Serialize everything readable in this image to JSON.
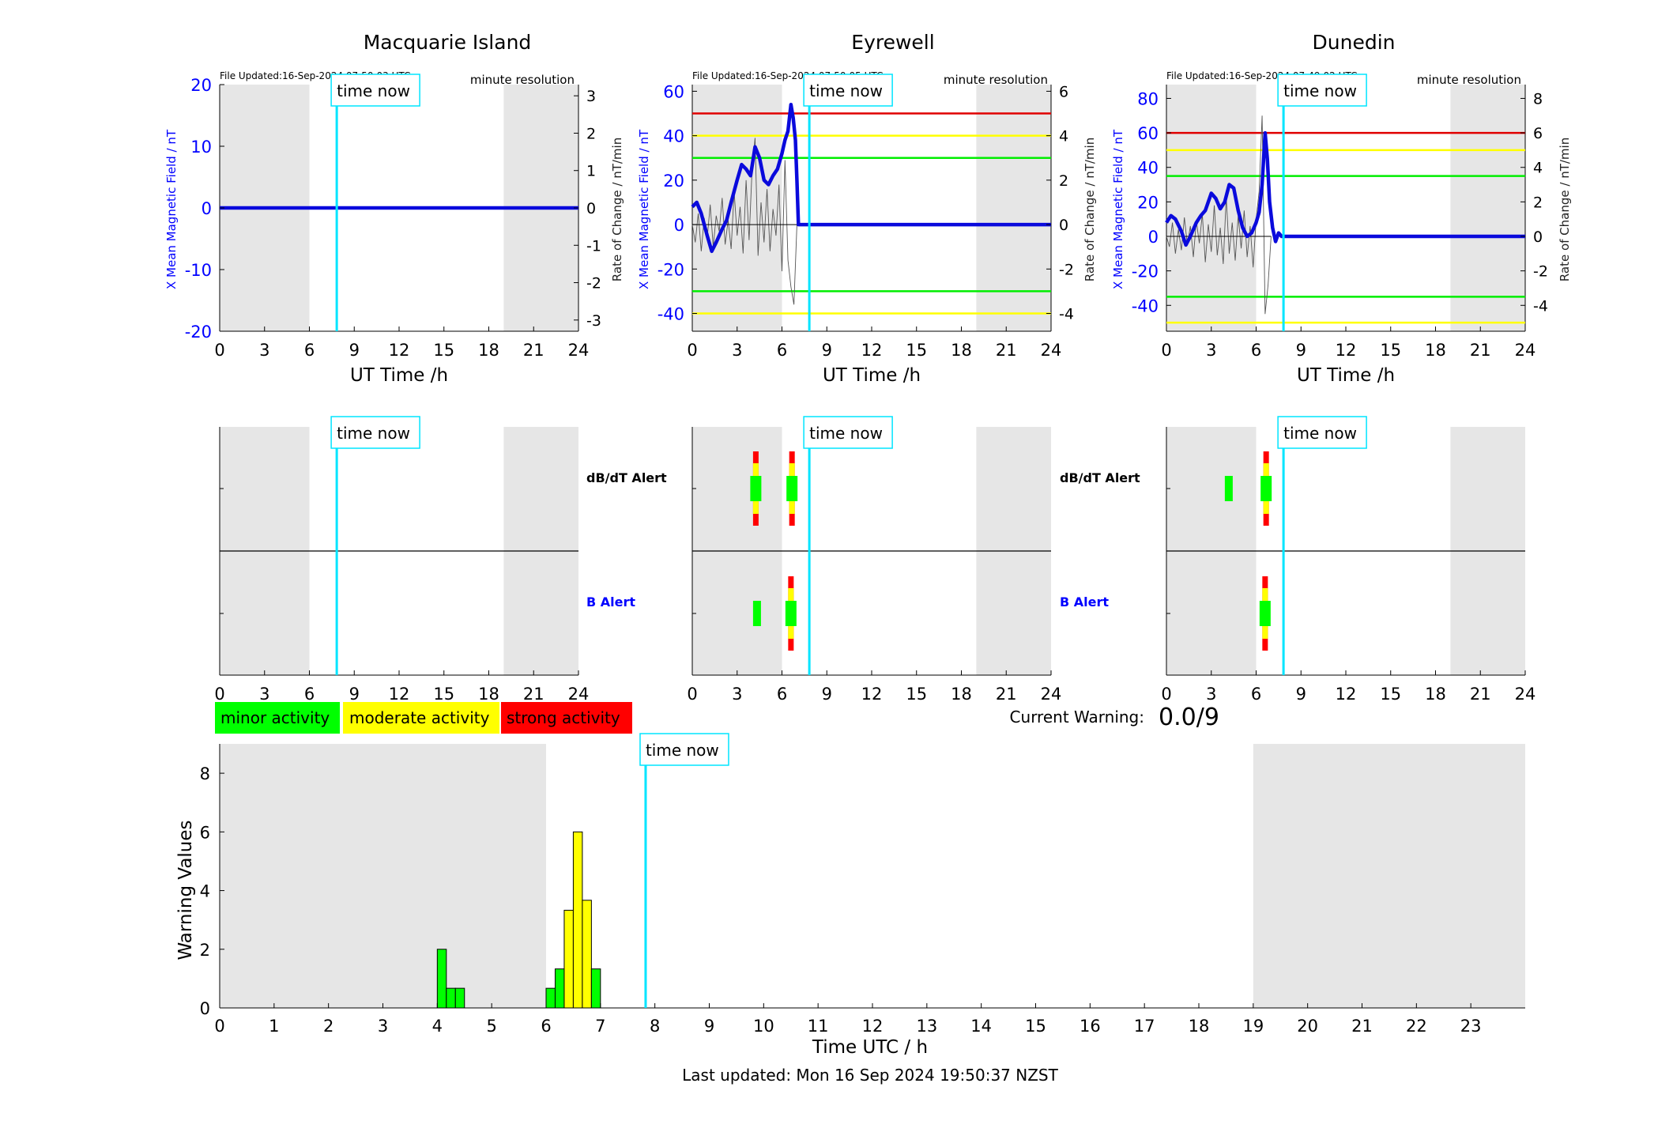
{
  "figure": {
    "stations": [
      "Macquarie Island",
      "Eyrewell",
      "Dunedin"
    ],
    "time_now_label": "time now",
    "file_updated": [
      "File Updated:16-Sep-2024 07:50:03 UTC",
      "File Updated:16-Sep-2024 07:50:05 UTC",
      "File Updated:16-Sep-2024 07:49:02 UTC"
    ],
    "resolution_label": "minute resolution",
    "left_ylabel": "X Mean Magnetic Field / nT",
    "right_ylabel": "Rate of Change / nT/min",
    "xlabel_top": "UT Time /h",
    "alert_labels": {
      "dbdt": "dB/dT Alert",
      "b": "B Alert"
    },
    "legend": [
      {
        "label": "minor activity",
        "color": "#00ff00"
      },
      {
        "label": "moderate activity",
        "color": "#ffff00"
      },
      {
        "label": "strong activity",
        "color": "#ff0000"
      }
    ],
    "current_warning_label": "Current Warning:",
    "current_warning_value": "0.0/9",
    "bottom_ylabel": "Warning Values",
    "bottom_xlabel": "Time UTC / h",
    "last_updated": "Last updated: Mon 16 Sep 2024 19:50:37 NZST"
  },
  "chart_data": [
    {
      "type": "line",
      "station": "Macquarie Island",
      "xlim": [
        0,
        24
      ],
      "x_ticks": [
        0,
        3,
        6,
        9,
        12,
        15,
        18,
        21,
        24
      ],
      "ylim_left": [
        -20,
        20
      ],
      "y_ticks_left": [
        -20,
        -10,
        0,
        10,
        20
      ],
      "ylim_right": [
        -3.3,
        3.3
      ],
      "y_ticks_right": [
        -3,
        -2,
        -1,
        0,
        1,
        2,
        3
      ],
      "night_shading_hours": [
        [
          0,
          6
        ],
        [
          19,
          24
        ]
      ],
      "time_now_hour": 7.83,
      "thresholds": [],
      "x_mean_field": {
        "x": [
          0,
          24
        ],
        "y": [
          0,
          0
        ]
      },
      "rate_of_change": {
        "x": [],
        "y": []
      }
    },
    {
      "type": "line",
      "station": "Eyrewell",
      "xlim": [
        0,
        24
      ],
      "x_ticks": [
        0,
        3,
        6,
        9,
        12,
        15,
        18,
        21,
        24
      ],
      "ylim_left": [
        -48,
        63
      ],
      "y_ticks_left": [
        -40,
        -20,
        0,
        20,
        40,
        60
      ],
      "ylim_right": [
        -4.8,
        6.3
      ],
      "y_ticks_right": [
        -4,
        -2,
        0,
        2,
        4,
        6
      ],
      "night_shading_hours": [
        [
          0,
          6
        ],
        [
          19,
          24
        ]
      ],
      "time_now_hour": 7.83,
      "thresholds": [
        {
          "value": 50,
          "color": "#e00000"
        },
        {
          "value": 40,
          "color": "#ffff00"
        },
        {
          "value": 30,
          "color": "#00ee00"
        },
        {
          "value": -30,
          "color": "#00ee00"
        },
        {
          "value": -40,
          "color": "#ffff00"
        }
      ],
      "x_mean_field": {
        "x": [
          0,
          0.3,
          0.6,
          1.0,
          1.3,
          1.6,
          2.0,
          2.3,
          2.6,
          3.0,
          3.3,
          3.6,
          3.9,
          4.2,
          4.5,
          4.8,
          5.1,
          5.4,
          5.7,
          6.0,
          6.2,
          6.4,
          6.6,
          6.75,
          6.9,
          7.0,
          7.1,
          24
        ],
        "y": [
          8,
          10,
          5,
          -5,
          -12,
          -8,
          -2,
          2,
          10,
          20,
          27,
          25,
          22,
          35,
          30,
          20,
          18,
          22,
          25,
          32,
          38,
          42,
          54,
          48,
          38,
          20,
          0,
          0
        ]
      },
      "rate_of_change": {
        "x": [
          0,
          0.2,
          0.4,
          0.6,
          0.8,
          1.0,
          1.2,
          1.4,
          1.6,
          1.8,
          2.0,
          2.2,
          2.4,
          2.6,
          2.8,
          3.0,
          3.2,
          3.4,
          3.6,
          3.8,
          4.0,
          4.2,
          4.4,
          4.6,
          4.8,
          5.0,
          5.2,
          5.4,
          5.6,
          5.8,
          6.0,
          6.2,
          6.4,
          6.6,
          6.8,
          7.0
        ],
        "y": [
          0,
          -0.8,
          0.5,
          -1.2,
          0.3,
          -0.6,
          0.9,
          -1.0,
          0.4,
          -0.3,
          1.2,
          -0.9,
          0.2,
          -1.1,
          1.5,
          -0.5,
          0.8,
          -1.3,
          2.0,
          -0.7,
          2.5,
          3.9,
          -1.4,
          1.0,
          -0.8,
          1.6,
          -1.2,
          0.7,
          -0.5,
          1.8,
          -2.1,
          2.9,
          -1.6,
          -2.8,
          -3.6,
          0
        ]
      }
    },
    {
      "type": "line",
      "station": "Dunedin",
      "xlim": [
        0,
        24
      ],
      "x_ticks": [
        0,
        3,
        6,
        9,
        12,
        15,
        18,
        21,
        24
      ],
      "ylim_left": [
        -55,
        88
      ],
      "y_ticks_left": [
        -40,
        -20,
        0,
        20,
        40,
        60,
        80
      ],
      "ylim_right": [
        -5.5,
        8.8
      ],
      "y_ticks_right": [
        -4,
        -2,
        0,
        2,
        4,
        6,
        8
      ],
      "night_shading_hours": [
        [
          0,
          6
        ],
        [
          19,
          24
        ]
      ],
      "time_now_hour": 7.83,
      "thresholds": [
        {
          "value": 60,
          "color": "#e00000"
        },
        {
          "value": 50,
          "color": "#ffff00"
        },
        {
          "value": 35,
          "color": "#00ee00"
        },
        {
          "value": -35,
          "color": "#00ee00"
        },
        {
          "value": -50,
          "color": "#ffff00"
        }
      ],
      "x_mean_field": {
        "x": [
          0,
          0.3,
          0.6,
          1.0,
          1.3,
          1.6,
          2.0,
          2.3,
          2.6,
          3.0,
          3.3,
          3.6,
          3.9,
          4.2,
          4.5,
          4.8,
          5.1,
          5.4,
          5.7,
          6.0,
          6.2,
          6.4,
          6.6,
          6.75,
          6.9,
          7.1,
          7.3,
          7.5,
          7.7,
          24
        ],
        "y": [
          8,
          12,
          10,
          3,
          -5,
          0,
          8,
          12,
          15,
          25,
          22,
          16,
          20,
          30,
          28,
          15,
          5,
          0,
          2,
          8,
          14,
          30,
          60,
          45,
          20,
          5,
          -3,
          2,
          0,
          0
        ]
      },
      "rate_of_change": {
        "x": [
          0,
          0.2,
          0.4,
          0.6,
          0.8,
          1.0,
          1.2,
          1.4,
          1.6,
          1.8,
          2.0,
          2.2,
          2.4,
          2.6,
          2.8,
          3.0,
          3.2,
          3.4,
          3.6,
          3.8,
          4.0,
          4.2,
          4.4,
          4.6,
          4.8,
          5.0,
          5.2,
          5.4,
          5.6,
          5.8,
          6.0,
          6.2,
          6.4,
          6.6,
          6.8,
          7.0
        ],
        "y": [
          0,
          -0.6,
          0.8,
          -1.0,
          0.4,
          -0.8,
          1.1,
          -0.5,
          0.6,
          -1.2,
          0.9,
          -0.4,
          1.3,
          -1.5,
          0.7,
          -0.9,
          1.8,
          -1.1,
          0.5,
          -1.6,
          2.3,
          -1.0,
          0.8,
          -1.4,
          1.2,
          -0.7,
          1.5,
          -1.2,
          0.6,
          -1.8,
          1.0,
          2.6,
          7.0,
          -4.5,
          -2.8,
          0
        ]
      }
    },
    {
      "type": "bar",
      "name": "alerts",
      "rows": [
        "dB/dT Alert",
        "B Alert"
      ],
      "xlim": [
        0,
        24
      ],
      "x_ticks": [
        0,
        3,
        6,
        9,
        12,
        15,
        18,
        21,
        24
      ],
      "time_now_hour": 7.83,
      "stations": [
        {
          "station": "Macquarie Island",
          "dbdt": [],
          "b": []
        },
        {
          "station": "Eyrewell",
          "dbdt": [
            {
              "hour": 4.25,
              "level": 3
            },
            {
              "hour": 6.67,
              "level": 3
            }
          ],
          "b": [
            {
              "hour": 4.33,
              "level": 1
            },
            {
              "hour": 6.6,
              "level": 3
            }
          ]
        },
        {
          "station": "Dunedin",
          "dbdt": [
            {
              "hour": 4.17,
              "level": 1
            },
            {
              "hour": 6.67,
              "level": 3
            }
          ],
          "b": [
            {
              "hour": 6.6,
              "level": 3
            }
          ]
        }
      ]
    },
    {
      "type": "bar",
      "name": "warning values",
      "xlabel": "Time UTC / h",
      "ylabel": "Warning Values",
      "xlim": [
        0,
        24
      ],
      "ylim": [
        0,
        9
      ],
      "x_ticks": [
        0,
        1,
        2,
        3,
        4,
        5,
        6,
        7,
        8,
        9,
        10,
        11,
        12,
        13,
        14,
        15,
        16,
        17,
        18,
        19,
        20,
        21,
        22,
        23
      ],
      "y_ticks": [
        0,
        2,
        4,
        6,
        8
      ],
      "night_shading_hours": [
        [
          0,
          6
        ],
        [
          19,
          24
        ]
      ],
      "time_now_hour": 7.83,
      "bin_width_hours": 0.1667,
      "bars": [
        {
          "hour": 4.0,
          "value": 2.0,
          "color": "#00ff00"
        },
        {
          "hour": 4.1667,
          "value": 0.67,
          "color": "#00ff00"
        },
        {
          "hour": 4.3333,
          "value": 0.67,
          "color": "#00ff00"
        },
        {
          "hour": 6.0,
          "value": 0.67,
          "color": "#00ff00"
        },
        {
          "hour": 6.1667,
          "value": 1.33,
          "color": "#00ff00"
        },
        {
          "hour": 6.3333,
          "value": 3.33,
          "color": "#ffff00"
        },
        {
          "hour": 6.5,
          "value": 6.0,
          "color": "#ffff00"
        },
        {
          "hour": 6.6667,
          "value": 3.67,
          "color": "#ffff00"
        },
        {
          "hour": 6.8333,
          "value": 1.33,
          "color": "#00ff00"
        }
      ]
    }
  ]
}
